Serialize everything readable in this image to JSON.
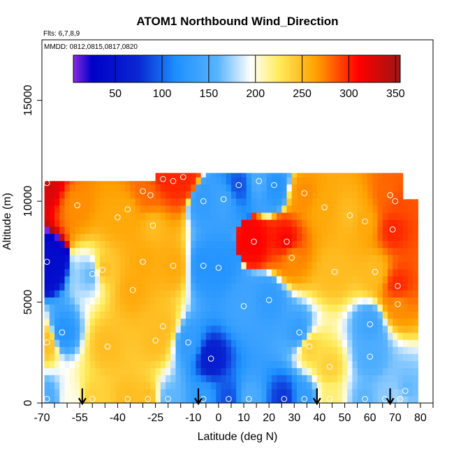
{
  "chart_data": {
    "type": "heatmap",
    "title": "ATOM1 Northbound Wind_Direction",
    "flights_label": "Flts: 6,7,8,9",
    "dates_label": "MMDD: 0812,0815,0817,0820",
    "xlabel": "Latitude (deg N)",
    "ylabel": "Altitude (m)",
    "xlim": [
      -70,
      85
    ],
    "ylim": [
      0,
      18000
    ],
    "x_ticks": [
      -70,
      -55,
      -40,
      -25,
      -10,
      0,
      10,
      20,
      30,
      40,
      50,
      60,
      70,
      80
    ],
    "x_minor_ticks": [
      -65,
      -60,
      -50,
      -45,
      -35,
      -30,
      -20,
      -15,
      -5,
      5,
      15,
      25,
      35,
      45,
      55,
      65,
      75,
      85
    ],
    "y_ticks": [
      0,
      5000,
      10000,
      15000
    ],
    "colorbar": {
      "range": [
        5,
        355
      ],
      "ticks": [
        50,
        100,
        150,
        200,
        250,
        300,
        350
      ],
      "stops": [
        {
          "v": 5,
          "c": "#8a2be2"
        },
        {
          "v": 25,
          "c": "#0000c8"
        },
        {
          "v": 75,
          "c": "#0a28d2"
        },
        {
          "v": 115,
          "c": "#1e90ff"
        },
        {
          "v": 160,
          "c": "#5ab4ff"
        },
        {
          "v": 195,
          "c": "#ffffff"
        },
        {
          "v": 225,
          "c": "#ffec5a"
        },
        {
          "v": 265,
          "c": "#ffa000"
        },
        {
          "v": 310,
          "c": "#ff0000"
        },
        {
          "v": 355,
          "c": "#a01414"
        }
      ]
    },
    "profile_arrows_lat": [
      -54,
      -8,
      39,
      68
    ],
    "observations": [
      {
        "lat": -68,
        "alt": 10900,
        "dir": 330
      },
      {
        "lat": -68,
        "alt": 7000,
        "dir": 40
      },
      {
        "lat": -68,
        "alt": 3000,
        "dir": 250
      },
      {
        "lat": -62,
        "alt": 3500,
        "dir": 120
      },
      {
        "lat": -56,
        "alt": 9800,
        "dir": 270
      },
      {
        "lat": -50,
        "alt": 6400,
        "dir": 160
      },
      {
        "lat": -46,
        "alt": 6600,
        "dir": 250
      },
      {
        "lat": -44,
        "alt": 2800,
        "dir": 250
      },
      {
        "lat": -40,
        "alt": 9200,
        "dir": 260
      },
      {
        "lat": -36,
        "alt": 9600,
        "dir": 260
      },
      {
        "lat": -34,
        "alt": 5600,
        "dir": 260
      },
      {
        "lat": -30,
        "alt": 10500,
        "dir": 280
      },
      {
        "lat": -30,
        "alt": 7000,
        "dir": 260
      },
      {
        "lat": -27,
        "alt": 10300,
        "dir": 280
      },
      {
        "lat": -26,
        "alt": 8800,
        "dir": 250
      },
      {
        "lat": -25,
        "alt": 3100,
        "dir": 250
      },
      {
        "lat": -22,
        "alt": 11100,
        "dir": 300
      },
      {
        "lat": -22,
        "alt": 3800,
        "dir": 250
      },
      {
        "lat": -18,
        "alt": 6800,
        "dir": 260
      },
      {
        "lat": -18,
        "alt": 11000,
        "dir": 300
      },
      {
        "lat": -14,
        "alt": 11200,
        "dir": 300
      },
      {
        "lat": -12,
        "alt": 3000,
        "dir": 130
      },
      {
        "lat": -6,
        "alt": 10000,
        "dir": 130
      },
      {
        "lat": -6,
        "alt": 6800,
        "dir": 120
      },
      {
        "lat": -3,
        "alt": 2200,
        "dir": 60
      },
      {
        "lat": 0,
        "alt": 6700,
        "dir": 120
      },
      {
        "lat": 2,
        "alt": 10100,
        "dir": 140
      },
      {
        "lat": 8,
        "alt": 10800,
        "dir": 90
      },
      {
        "lat": 10,
        "alt": 4800,
        "dir": 140
      },
      {
        "lat": 14,
        "alt": 8000,
        "dir": 310
      },
      {
        "lat": 16,
        "alt": 11000,
        "dir": 150
      },
      {
        "lat": 20,
        "alt": 5100,
        "dir": 130
      },
      {
        "lat": 22,
        "alt": 10800,
        "dir": 120
      },
      {
        "lat": 27,
        "alt": 8000,
        "dir": 310
      },
      {
        "lat": 29,
        "alt": 7200,
        "dir": 270
      },
      {
        "lat": 32,
        "alt": 3500,
        "dir": 130
      },
      {
        "lat": 34,
        "alt": 10400,
        "dir": 270
      },
      {
        "lat": 36,
        "alt": 2800,
        "dir": 240
      },
      {
        "lat": 42,
        "alt": 9700,
        "dir": 260
      },
      {
        "lat": 44,
        "alt": 1800,
        "dir": 240
      },
      {
        "lat": 46,
        "alt": 6500,
        "dir": 250
      },
      {
        "lat": 52,
        "alt": 9300,
        "dir": 250
      },
      {
        "lat": 58,
        "alt": 9000,
        "dir": 260
      },
      {
        "lat": 60,
        "alt": 3900,
        "dir": 140
      },
      {
        "lat": 60,
        "alt": 2300,
        "dir": 150
      },
      {
        "lat": 62,
        "alt": 6500,
        "dir": 250
      },
      {
        "lat": 68,
        "alt": 10300,
        "dir": 280
      },
      {
        "lat": 69,
        "alt": 8600,
        "dir": 300
      },
      {
        "lat": 70,
        "alt": 10000,
        "dir": 290
      },
      {
        "lat": 71,
        "alt": 5800,
        "dir": 300
      },
      {
        "lat": 71,
        "alt": 4900,
        "dir": 270
      },
      {
        "lat": 74,
        "alt": 600,
        "dir": 160
      },
      {
        "lat": 72,
        "alt": 200,
        "dir": 180
      },
      {
        "lat": -68,
        "alt": 200,
        "dir": 150
      },
      {
        "lat": -58,
        "alt": 200,
        "dir": 200
      },
      {
        "lat": -50,
        "alt": 200,
        "dir": 240
      },
      {
        "lat": -36,
        "alt": 200,
        "dir": 250
      },
      {
        "lat": -28,
        "alt": 200,
        "dir": 250
      },
      {
        "lat": -20,
        "alt": 200,
        "dir": 160
      },
      {
        "lat": -6,
        "alt": 200,
        "dir": 130
      },
      {
        "lat": 4,
        "alt": 200,
        "dir": 90
      },
      {
        "lat": 12,
        "alt": 200,
        "dir": 150
      },
      {
        "lat": 26,
        "alt": 200,
        "dir": 80
      },
      {
        "lat": 34,
        "alt": 200,
        "dir": 130
      },
      {
        "lat": 44,
        "alt": 200,
        "dir": 220
      },
      {
        "lat": 58,
        "alt": 200,
        "dir": 160
      },
      {
        "lat": 66,
        "alt": 200,
        "dir": 170
      }
    ]
  }
}
